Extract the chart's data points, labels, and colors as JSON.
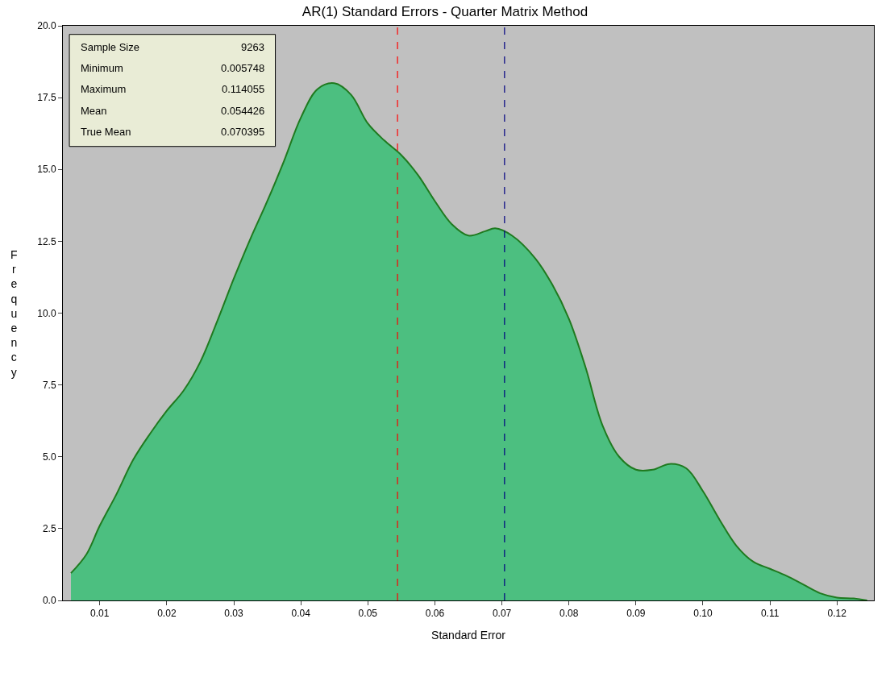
{
  "chart_data": {
    "type": "area",
    "title": "AR(1) Standard Errors - Quarter Matrix Method",
    "xlabel": "Standard Error",
    "ylabel": "Frequency",
    "x": [
      0.0057,
      0.008,
      0.01,
      0.0125,
      0.015,
      0.0175,
      0.02,
      0.0225,
      0.025,
      0.0275,
      0.03,
      0.0325,
      0.035,
      0.0375,
      0.04,
      0.0425,
      0.045,
      0.0475,
      0.05,
      0.0525,
      0.055,
      0.0575,
      0.06,
      0.0625,
      0.065,
      0.0675,
      0.069,
      0.0715,
      0.075,
      0.0775,
      0.08,
      0.0825,
      0.085,
      0.0875,
      0.09,
      0.0925,
      0.095,
      0.0975,
      0.1,
      0.1025,
      0.105,
      0.1075,
      0.11,
      0.1125,
      0.115,
      0.1175,
      0.12,
      0.1225,
      0.1245
    ],
    "series": [
      {
        "color": "#4cbf80",
        "values": [
          0.95,
          1.6,
          2.6,
          3.7,
          4.9,
          5.8,
          6.6,
          7.3,
          8.3,
          9.7,
          11.2,
          12.6,
          13.9,
          15.3,
          16.8,
          17.8,
          18.0,
          17.6,
          16.6,
          16.0,
          15.5,
          14.8,
          13.9,
          13.1,
          12.7,
          12.85,
          12.95,
          12.7,
          11.9,
          11.0,
          9.8,
          8.1,
          6.1,
          5.0,
          4.55,
          4.55,
          4.75,
          4.6,
          3.8,
          2.8,
          1.9,
          1.35,
          1.1,
          0.85,
          0.55,
          0.25,
          0.1,
          0.07,
          0.0
        ]
      }
    ],
    "xlim": [
      0.0045,
      0.1255
    ],
    "xticks": [
      0.01,
      0.02,
      0.03,
      0.04,
      0.05,
      0.06,
      0.07,
      0.08,
      0.09,
      {
        "value": 0.1,
        "label": "0.10"
      },
      0.11,
      0.12
    ],
    "ylim": [
      0,
      20
    ],
    "yticks": [
      {
        "value": 0,
        "label": "0.0"
      },
      2.5,
      {
        "value": 5,
        "label": "5.0"
      },
      7.5,
      {
        "value": 10,
        "label": "10.0"
      },
      12.5,
      {
        "value": 15,
        "label": "15.0"
      },
      17.5,
      {
        "value": 20,
        "label": "20.0"
      }
    ],
    "ref_lines": [
      {
        "axis": "x",
        "value": 0.054426,
        "color": "#ff0000",
        "line_style": "dashed"
      },
      {
        "axis": "x",
        "value": 0.070395,
        "color": "#000080",
        "line_style": "dashed"
      }
    ],
    "annotations": [
      "Sample Size",
      "9263",
      "Minimum",
      "0.005748",
      "Maximum",
      "0.114055",
      "Mean",
      "0.054426",
      "True Mean",
      "0.070395"
    ],
    "grid": false
  }
}
